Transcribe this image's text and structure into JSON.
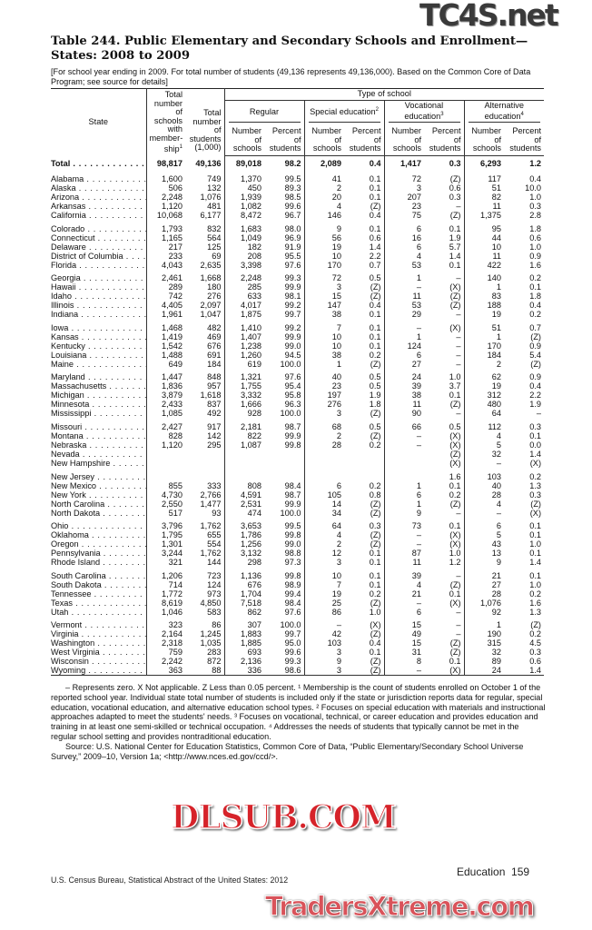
{
  "title": "Table 244. Public Elementary and Secondary Schools and Enrollment—States: 2008 to 2009",
  "headnote": "[For school year ending in 2009. For total number of students (49,136 represents 49,136,000). Based on the Common Core of Data Program; see source for details]",
  "header": {
    "state": "State",
    "total_schools": "Total number of schools with member-ship",
    "total_schools_sup": "1",
    "total_students": "Total number of students (1,000)",
    "type_of_school": "Type of school",
    "groups": [
      {
        "label": "Regular",
        "sup": ""
      },
      {
        "label": "Special education",
        "sup": "2"
      },
      {
        "label": "Vocational education",
        "sup": "3"
      },
      {
        "label": "Alternative education",
        "sup": "4"
      }
    ],
    "number_of_schools": "Number of schools",
    "percent_of_students": "Percent of students"
  },
  "total_row": [
    "Total",
    "98,817",
    "49,136",
    "89,018",
    "98.2",
    "2,089",
    "0.4",
    "1,417",
    "0.3",
    "6,293",
    "1.2"
  ],
  "groups": [
    [
      [
        "Alabama",
        "1,600",
        "749",
        "1,370",
        "99.5",
        "41",
        "0.1",
        "72",
        "(Z)",
        "117",
        "0.4"
      ],
      [
        "Alaska",
        "506",
        "132",
        "450",
        "89.3",
        "2",
        "0.1",
        "3",
        "0.6",
        "51",
        "10.0"
      ],
      [
        "Arizona",
        "2,248",
        "1,076",
        "1,939",
        "98.5",
        "20",
        "0.1",
        "207",
        "0.3",
        "82",
        "1.0"
      ],
      [
        "Arkansas",
        "1,120",
        "481",
        "1,082",
        "99.6",
        "4",
        "(Z)",
        "23",
        "–",
        "11",
        "0.3"
      ],
      [
        "California",
        "10,068",
        "6,177",
        "8,472",
        "96.7",
        "146",
        "0.4",
        "75",
        "(Z)",
        "1,375",
        "2.8"
      ]
    ],
    [
      [
        "Colorado",
        "1,793",
        "832",
        "1,683",
        "98.0",
        "9",
        "0.1",
        "6",
        "0.1",
        "95",
        "1.8"
      ],
      [
        "Connecticut",
        "1,165",
        "564",
        "1,049",
        "96.9",
        "56",
        "0.6",
        "16",
        "1.9",
        "44",
        "0.6"
      ],
      [
        "Delaware",
        "217",
        "125",
        "182",
        "91.9",
        "19",
        "1.4",
        "6",
        "5.7",
        "10",
        "1.0"
      ],
      [
        "District of Columbia",
        "233",
        "69",
        "208",
        "95.5",
        "10",
        "2.2",
        "4",
        "1.4",
        "11",
        "0.9"
      ],
      [
        "Florida",
        "4,043",
        "2,635",
        "3,398",
        "97.6",
        "170",
        "0.7",
        "53",
        "0.1",
        "422",
        "1.6"
      ]
    ],
    [
      [
        "Georgia",
        "2,461",
        "1,668",
        "2,248",
        "99.3",
        "72",
        "0.5",
        "1",
        "–",
        "140",
        "0.2"
      ],
      [
        "Hawaii",
        "289",
        "180",
        "285",
        "99.9",
        "3",
        "(Z)",
        "–",
        "(X)",
        "1",
        "0.1"
      ],
      [
        "Idaho",
        "742",
        "276",
        "633",
        "98.1",
        "15",
        "(Z)",
        "11",
        "(Z)",
        "83",
        "1.8"
      ],
      [
        "Illinois",
        "4,405",
        "2,097",
        "4,017",
        "99.2",
        "147",
        "0.4",
        "53",
        "(Z)",
        "188",
        "0.4"
      ],
      [
        "Indiana",
        "1,961",
        "1,047",
        "1,875",
        "99.7",
        "38",
        "0.1",
        "29",
        "–",
        "19",
        "0.2"
      ]
    ],
    [
      [
        "Iowa",
        "1,468",
        "482",
        "1,410",
        "99.2",
        "7",
        "0.1",
        "–",
        "(X)",
        "51",
        "0.7"
      ],
      [
        "Kansas",
        "1,419",
        "469",
        "1,407",
        "99.9",
        "10",
        "0.1",
        "1",
        "–",
        "1",
        "(Z)"
      ],
      [
        "Kentucky",
        "1,542",
        "676",
        "1,238",
        "99.0",
        "10",
        "0.1",
        "124",
        "–",
        "170",
        "0.9"
      ],
      [
        "Louisiana",
        "1,488",
        "691",
        "1,260",
        "94.5",
        "38",
        "0.2",
        "6",
        "–",
        "184",
        "5.4"
      ],
      [
        "Maine",
        "649",
        "184",
        "619",
        "100.0",
        "1",
        "(Z)",
        "27",
        "–",
        "2",
        "(Z)"
      ]
    ],
    [
      [
        "Maryland",
        "1,447",
        "848",
        "1,321",
        "97.6",
        "40",
        "0.5",
        "24",
        "1.0",
        "62",
        "0.9"
      ],
      [
        "Massachusetts",
        "1,836",
        "957",
        "1,755",
        "95.4",
        "23",
        "0.5",
        "39",
        "3.7",
        "19",
        "0.4"
      ],
      [
        "Michigan",
        "3,879",
        "1,618",
        "3,332",
        "95.8",
        "197",
        "1.9",
        "38",
        "0.1",
        "312",
        "2.2"
      ],
      [
        "Minnesota",
        "2,433",
        "837",
        "1,666",
        "96.3",
        "276",
        "1.8",
        "11",
        "(Z)",
        "480",
        "1.9"
      ],
      [
        "Mississippi",
        "1,085",
        "492",
        "928",
        "100.0",
        "3",
        "(Z)",
        "90",
        "–",
        "64",
        "–"
      ]
    ],
    [
      [
        "Missouri",
        "2,427",
        "917",
        "2,181",
        "98.7",
        "68",
        "0.5",
        "66",
        "0.5",
        "112",
        "0.3"
      ],
      [
        "Montana",
        "828",
        "142",
        "822",
        "99.9",
        "2",
        "(Z)",
        "–",
        "(X)",
        "4",
        "0.1"
      ],
      [
        "Nebraska",
        "1,120",
        "295",
        "1,087",
        "99.8",
        "28",
        "0.2",
        "–",
        "(X)",
        "5",
        "0.0"
      ],
      [
        "Nevada",
        "",
        "",
        "",
        "",
        "",
        "",
        "",
        "(Z)",
        "32",
        "1.4"
      ],
      [
        "New Hampshire",
        "",
        "",
        "",
        "",
        "",
        "",
        "",
        "(X)",
        "–",
        "(X)"
      ]
    ],
    [
      [
        "New Jersey",
        "",
        "",
        "",
        "",
        "",
        "",
        "",
        "1.6",
        "103",
        "0.2"
      ],
      [
        "New Mexico",
        "855",
        "333",
        "808",
        "98.4",
        "6",
        "0.2",
        "1",
        "0.1",
        "40",
        "1.3"
      ],
      [
        "New York",
        "4,730",
        "2,766",
        "4,591",
        "98.7",
        "105",
        "0.8",
        "6",
        "0.2",
        "28",
        "0.3"
      ],
      [
        "North Carolina",
        "2,550",
        "1,477",
        "2,531",
        "99.9",
        "14",
        "(Z)",
        "1",
        "(Z)",
        "4",
        "(Z)"
      ],
      [
        "North Dakota",
        "517",
        "93",
        "474",
        "100.0",
        "34",
        "(Z)",
        "9",
        "–",
        "–",
        "(X)"
      ]
    ],
    [
      [
        "Ohio",
        "3,796",
        "1,762",
        "3,653",
        "99.5",
        "64",
        "0.3",
        "73",
        "0.1",
        "6",
        "0.1"
      ],
      [
        "Oklahoma",
        "1,795",
        "655",
        "1,786",
        "99.8",
        "4",
        "(Z)",
        "–",
        "(X)",
        "5",
        "0.1"
      ],
      [
        "Oregon",
        "1,301",
        "554",
        "1,256",
        "99.0",
        "2",
        "(Z)",
        "–",
        "(X)",
        "43",
        "1.0"
      ],
      [
        "Pennsylvania",
        "3,244",
        "1,762",
        "3,132",
        "98.8",
        "12",
        "0.1",
        "87",
        "1.0",
        "13",
        "0.1"
      ],
      [
        "Rhode Island",
        "321",
        "144",
        "298",
        "97.3",
        "3",
        "0.1",
        "11",
        "1.2",
        "9",
        "1.4"
      ]
    ],
    [
      [
        "South Carolina",
        "1,206",
        "723",
        "1,136",
        "99.8",
        "10",
        "0.1",
        "39",
        "–",
        "21",
        "0.1"
      ],
      [
        "South Dakota",
        "714",
        "124",
        "676",
        "98.9",
        "7",
        "0.1",
        "4",
        "(Z)",
        "27",
        "1.0"
      ],
      [
        "Tennessee",
        "1,772",
        "973",
        "1,704",
        "99.4",
        "19",
        "0.2",
        "21",
        "0.1",
        "28",
        "0.2"
      ],
      [
        "Texas",
        "8,619",
        "4,850",
        "7,518",
        "98.4",
        "25",
        "(Z)",
        "–",
        "(X)",
        "1,076",
        "1.6"
      ],
      [
        "Utah",
        "1,046",
        "583",
        "862",
        "97.6",
        "86",
        "1.0",
        "6",
        "–",
        "92",
        "1.3"
      ]
    ],
    [
      [
        "Vermont",
        "323",
        "86",
        "307",
        "100.0",
        "–",
        "(X)",
        "15",
        "–",
        "1",
        "(Z)"
      ],
      [
        "Virginia",
        "2,164",
        "1,245",
        "1,883",
        "99.7",
        "42",
        "(Z)",
        "49",
        "–",
        "190",
        "0.2"
      ],
      [
        "Washington",
        "2,318",
        "1,035",
        "1,885",
        "95.0",
        "103",
        "0.4",
        "15",
        "(Z)",
        "315",
        "4.5"
      ],
      [
        "West Virginia",
        "759",
        "283",
        "693",
        "99.6",
        "3",
        "0.1",
        "31",
        "(Z)",
        "32",
        "0.3"
      ],
      [
        "Wisconsin",
        "2,242",
        "872",
        "2,136",
        "99.3",
        "9",
        "(Z)",
        "8",
        "0.1",
        "89",
        "0.6"
      ],
      [
        "Wyoming",
        "363",
        "88",
        "336",
        "98.6",
        "3",
        "(Z)",
        "–",
        "(X)",
        "24",
        "1.4"
      ]
    ]
  ],
  "footnotes": "– Represents zero. X Not applicable. Z Less than 0.05 percent. ¹ Membership is the count of students enrolled on October 1 of the reported school year. Individual state total number of students is included only if the state or jurisdiction reports data for regular, special education, vocational education, and alternative education school types. ² Focuses on special education with materials and instructional approaches adapted to meet the students' needs. ³ Focuses on vocational, technical, or career education and provides education and training in at least one semi-skilled or technical occupation. ⁴ Addresses the needs of students that typically cannot be met in the regular school setting and provides nontraditional education.",
  "source": "Source: U.S. National Center for Education Statistics, Common Core of Data, “Public Elementary/Secondary School Universe Survey,” 2009–10, Version 1a; <http://www.nces.ed.gov/ccd/>.",
  "footer": {
    "left": "U.S. Census Bureau, Statistical Abstract of the United States: 2012",
    "section": "Education",
    "page": "159"
  },
  "watermarks": {
    "top": "TC4S.net",
    "middle": "DLSUB.COM",
    "bottom": "TradersXtreme.com"
  }
}
